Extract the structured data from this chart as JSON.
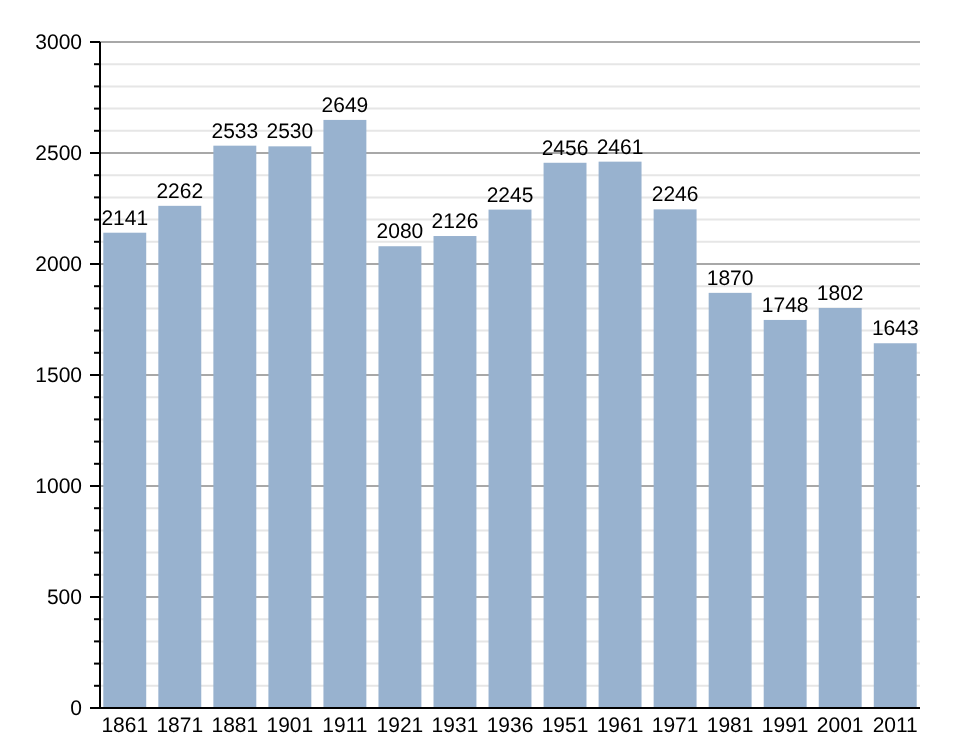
{
  "chart_data": {
    "type": "bar",
    "categories": [
      "1861",
      "1871",
      "1881",
      "1901",
      "1911",
      "1921",
      "1931",
      "1936",
      "1951",
      "1961",
      "1971",
      "1981",
      "1991",
      "2001",
      "2011"
    ],
    "values": [
      2141,
      2262,
      2533,
      2530,
      2649,
      2080,
      2126,
      2245,
      2456,
      2461,
      2246,
      1870,
      1748,
      1802,
      1643
    ],
    "color": "#98b2cf",
    "ylim": [
      0,
      3000
    ],
    "yticks": [
      0,
      {
        "value": 100,
        "label": null
      },
      {
        "value": 200,
        "label": null
      },
      {
        "value": 300,
        "label": null
      },
      {
        "value": 400,
        "label": null
      },
      500,
      {
        "value": 600,
        "label": null
      },
      {
        "value": 700,
        "label": null
      },
      {
        "value": 800,
        "label": null
      },
      {
        "value": 900,
        "label": null
      },
      1000,
      {
        "value": 1100,
        "label": null
      },
      {
        "value": 1200,
        "label": null
      },
      {
        "value": 1300,
        "label": null
      },
      {
        "value": 1400,
        "label": null
      },
      1500,
      {
        "value": 1600,
        "label": null
      },
      {
        "value": 1700,
        "label": null
      },
      {
        "value": 1800,
        "label": null
      },
      {
        "value": 1900,
        "label": null
      },
      2000,
      {
        "value": 2100,
        "label": null
      },
      {
        "value": 2200,
        "label": null
      },
      {
        "value": 2300,
        "label": null
      },
      {
        "value": 2400,
        "label": null
      },
      2500,
      {
        "value": 2600,
        "label": null
      },
      {
        "value": 2700,
        "label": null
      },
      {
        "value": 2800,
        "label": null
      },
      {
        "value": 2900,
        "label": null
      },
      3000
    ],
    "grid": "y",
    "data_labels": true
  }
}
